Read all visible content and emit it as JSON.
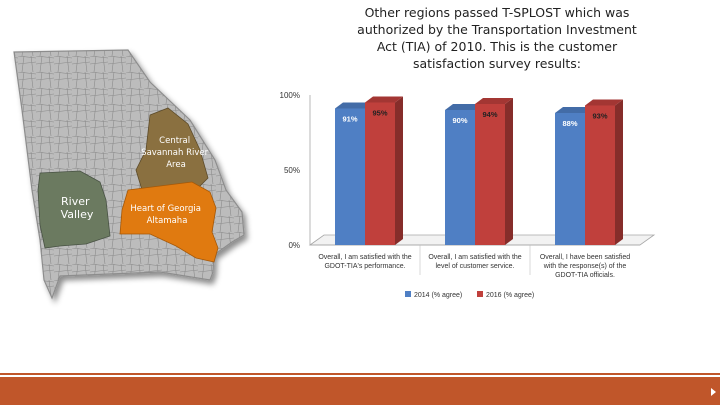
{
  "slide": {
    "title": "Other regions passed T-SPLOST which was authorized by the Transportation Investment Act (TIA) of 2010.  This is the customer satisfaction survey results:"
  },
  "map": {
    "regions": [
      {
        "name": "Central Savannah River Area",
        "lines": [
          "Central",
          "Savannah River",
          "Area"
        ],
        "color": "#8a7040"
      },
      {
        "name": "River Valley",
        "lines": [
          "River",
          "Valley"
        ],
        "color": "#6b7a60"
      },
      {
        "name": "Heart of Georgia Altamaha",
        "lines": [
          "Heart of Georgia",
          "Altamaha"
        ],
        "color": "#e07a10"
      }
    ],
    "base_color": "#bcbcbc"
  },
  "chart_data": {
    "type": "bar",
    "categories": [
      [
        "Overall, I am satisfied with the",
        "GDOT-TIA's performance."
      ],
      [
        "Overall, I am satisfied with the",
        "level of customer service."
      ],
      [
        "Overall, I have been satisfied",
        "with the response(s) of the",
        "GDOT-TIA officials."
      ]
    ],
    "series": [
      {
        "name": "2014 (% agree)",
        "values": [
          91,
          90,
          88
        ],
        "labels": [
          "91%",
          "90%",
          "88%"
        ],
        "color": "#4f7fc4"
      },
      {
        "name": "2016 (% agree)",
        "values": [
          95,
          94,
          93
        ],
        "labels": [
          "95%",
          "94%",
          "93%"
        ],
        "color": "#c0403c"
      }
    ],
    "yticks": [
      "100%",
      "50%",
      "0%"
    ],
    "ylim": [
      0,
      100
    ],
    "legend": "bottom"
  }
}
